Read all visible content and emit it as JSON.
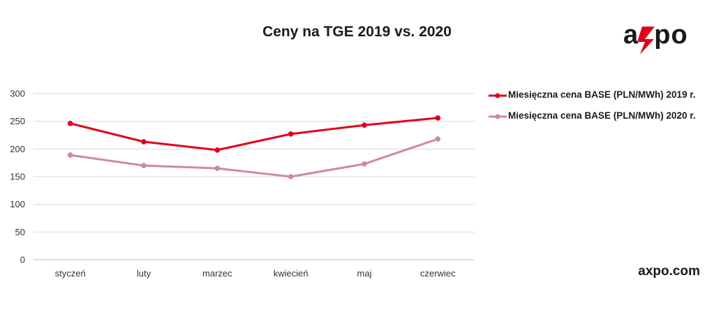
{
  "title": "Ceny na TGE 2019 vs. 2020",
  "logo_text": "axpo",
  "site": "axpo.com",
  "colors": {
    "brand_red": "#e2001a",
    "series_2019": "#e2001a",
    "series_2020": "#cc8c96",
    "grid": "#d9d9d9"
  },
  "chart_data": {
    "type": "line",
    "categories": [
      "styczeń",
      "luty",
      "marzec",
      "kwiecień",
      "maj",
      "czerwiec"
    ],
    "series": [
      {
        "name": "Miesięczna cena BASE (PLN/MWh) 2019 r.",
        "values": [
          246,
          213,
          198,
          227,
          243,
          256
        ]
      },
      {
        "name": "Miesięczna cena BASE (PLN/MWh) 2020 r.",
        "values": [
          189,
          170,
          165,
          150,
          173,
          218
        ]
      }
    ],
    "yticks": [
      0,
      50,
      100,
      150,
      200,
      250,
      300
    ],
    "ylim": [
      0,
      300
    ],
    "grid": true,
    "legend": "right",
    "markers": true
  }
}
